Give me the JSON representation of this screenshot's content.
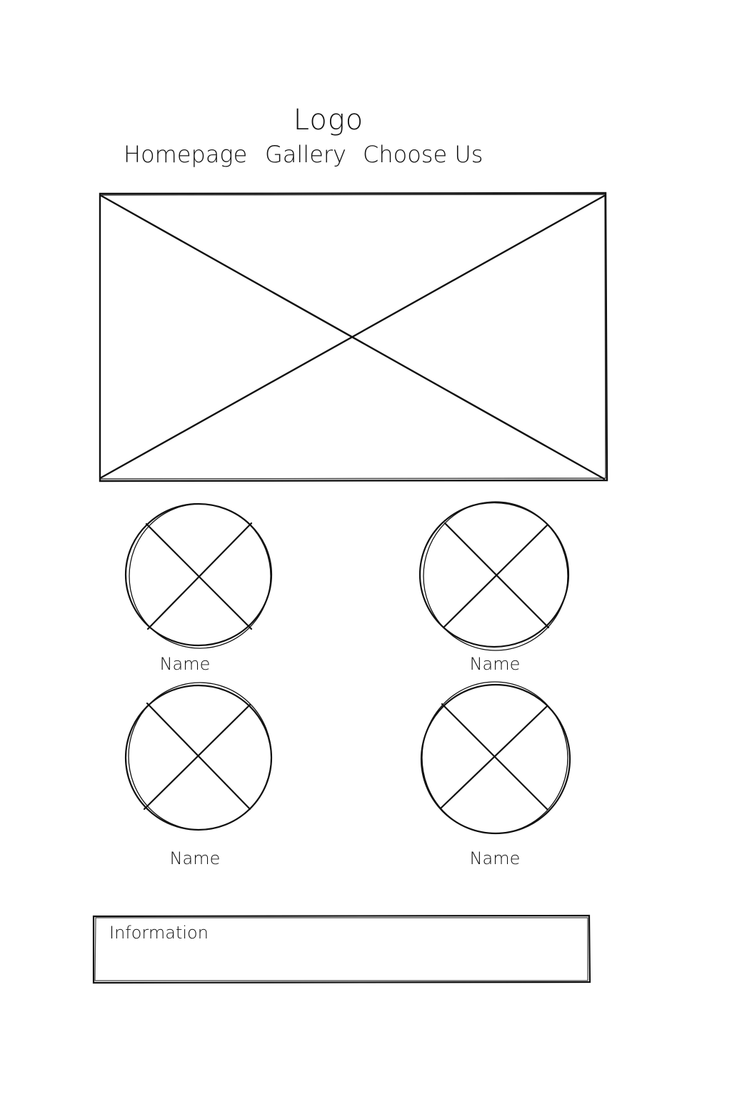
{
  "header": {
    "logo": "Logo",
    "nav": [
      "Homepage",
      "Gallery",
      "Choose Us"
    ]
  },
  "hero": {
    "icon": "image-placeholder-icon"
  },
  "people": [
    {
      "name": "Name",
      "icon": "image-placeholder-icon"
    },
    {
      "name": "Name",
      "icon": "image-placeholder-icon"
    },
    {
      "name": "Name",
      "icon": "image-placeholder-icon"
    },
    {
      "name": "Name",
      "icon": "image-placeholder-icon"
    }
  ],
  "footer": {
    "info_label": "Information"
  },
  "colors": {
    "stroke": "#111111",
    "background": "#ffffff"
  }
}
